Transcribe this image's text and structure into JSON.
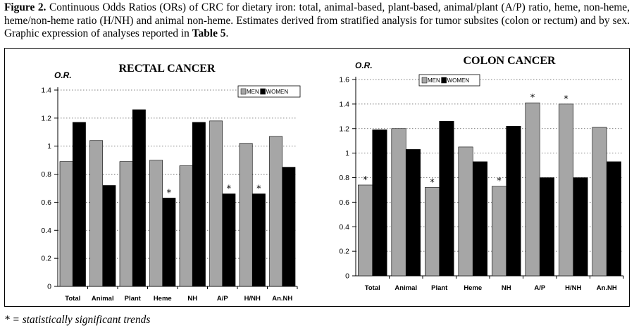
{
  "caption": {
    "label": "Figure 2.",
    "text_before_bold": " Continuous Odds Ratios (ORs) of CRC for dietary iron: total, animal-based, plant-based, animal/plant (A/P) ratio, heme, non-heme, heme/non-heme ratio (H/NH) and animal non-heme. Estimates derived from stratified analysis for tumor subsites (colon or rectum) and by sex. Graphic expression of analyses reported in ",
    "bold_ref": "Table 5",
    "text_after_bold": "."
  },
  "footnote": "* = statistically significant trends",
  "colors": {
    "men": "#a6a6a6",
    "women": "#000000",
    "grid": "#555555"
  },
  "chart_data": [
    {
      "type": "bar",
      "title": "RECTAL CANCER",
      "ylabel": "O.R.",
      "ylim": [
        0,
        1.4
      ],
      "yticks": [
        0,
        0.2,
        0.4,
        0.6,
        0.8,
        1,
        1.2,
        1.4
      ],
      "ytick_labels": [
        "0",
        "0.2",
        "0.4",
        "0.6",
        "0.8",
        "1",
        "1.2",
        "1.4"
      ],
      "grid": "dotted horizontal",
      "legend_position": "top-right",
      "categories": [
        "Total",
        "Animal",
        "Plant",
        "Heme",
        "NH",
        "A/P",
        "H/NH",
        "An.NH"
      ],
      "series": [
        {
          "name": "MEN",
          "values": [
            0.89,
            1.04,
            0.89,
            0.9,
            0.86,
            1.18,
            1.02,
            1.07
          ]
        },
        {
          "name": "WOMEN",
          "values": [
            1.17,
            0.72,
            1.26,
            0.63,
            1.17,
            0.66,
            0.66,
            0.85
          ]
        }
      ],
      "annotations": [
        {
          "series": "WOMEN",
          "category": "Heme",
          "text": "*"
        },
        {
          "series": "WOMEN",
          "category": "A/P",
          "text": "*"
        },
        {
          "series": "WOMEN",
          "category": "H/NH",
          "text": "*"
        }
      ]
    },
    {
      "type": "bar",
      "title": "COLON CANCER",
      "ylabel": "O.R.",
      "ylim": [
        0,
        1.6
      ],
      "yticks": [
        0,
        0.2,
        0.4,
        0.6,
        0.8,
        1,
        1.2,
        1.4,
        1.6
      ],
      "ytick_labels": [
        "0",
        "0.2",
        "0.4",
        "0.6",
        "0.8",
        "1",
        "1.2",
        "1.4",
        "1.6"
      ],
      "grid": "dotted horizontal",
      "legend_position": "top-left",
      "categories": [
        "Total",
        "Animal",
        "Plant",
        "Heme",
        "NH",
        "A/P",
        "H/NH",
        "An.NH"
      ],
      "series": [
        {
          "name": "MEN",
          "values": [
            0.74,
            1.2,
            0.72,
            1.05,
            0.73,
            1.41,
            1.4,
            1.21
          ]
        },
        {
          "name": "WOMEN",
          "values": [
            1.19,
            1.03,
            1.26,
            0.93,
            1.22,
            0.8,
            0.8,
            0.93
          ]
        }
      ],
      "annotations": [
        {
          "series": "MEN",
          "category": "Total",
          "text": "*"
        },
        {
          "series": "MEN",
          "category": "Plant",
          "text": "*"
        },
        {
          "series": "MEN",
          "category": "NH",
          "text": "*"
        },
        {
          "series": "MEN",
          "category": "A/P",
          "text": "*"
        },
        {
          "series": "MEN",
          "category": "H/NH",
          "text": "*"
        }
      ]
    }
  ]
}
